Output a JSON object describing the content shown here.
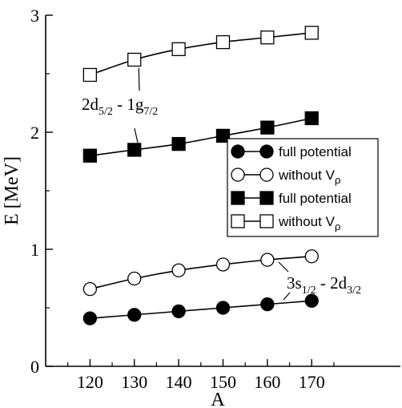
{
  "chart_data": {
    "type": "line",
    "xlabel": "A",
    "ylabel": "E [MeV]",
    "xlim": [
      110,
      190
    ],
    "ylim": [
      0,
      3
    ],
    "x_ticks": [
      "120",
      "130",
      "140",
      "150",
      "160",
      "170"
    ],
    "y_ticks": [
      "0",
      "1",
      "2",
      "3"
    ],
    "grid": false,
    "legend_placement": "right",
    "x": [
      120,
      130,
      140,
      150,
      160,
      170
    ],
    "series": [
      {
        "name": "full potential",
        "marker": "circle-filled",
        "values": [
          0.41,
          0.44,
          0.47,
          0.5,
          0.53,
          0.56
        ]
      },
      {
        "name": "without V",
        "name_sub": "ρ",
        "marker": "circle-open",
        "values": [
          0.66,
          0.75,
          0.82,
          0.87,
          0.91,
          0.94
        ]
      },
      {
        "name": "full potential",
        "marker": "square-filled",
        "values": [
          1.8,
          1.85,
          1.9,
          1.97,
          2.04,
          2.12
        ]
      },
      {
        "name": "without V",
        "name_sub": "ρ",
        "marker": "square-open",
        "values": [
          2.49,
          2.62,
          2.71,
          2.77,
          2.81,
          2.85
        ]
      }
    ],
    "annotations": [
      {
        "parts": [
          [
            "2d",
            ""
          ],
          [
            "5/2",
            "sub"
          ],
          [
            " - 1g",
            ""
          ],
          [
            "7/2",
            "sub"
          ]
        ],
        "pointer_to_series": [
          2,
          3
        ]
      },
      {
        "parts": [
          [
            "3s",
            ""
          ],
          [
            "1/2",
            "sub"
          ],
          [
            " - 2d",
            ""
          ],
          [
            "3/2",
            "sub"
          ]
        ],
        "pointer_to_series": [
          0,
          1
        ]
      }
    ]
  }
}
